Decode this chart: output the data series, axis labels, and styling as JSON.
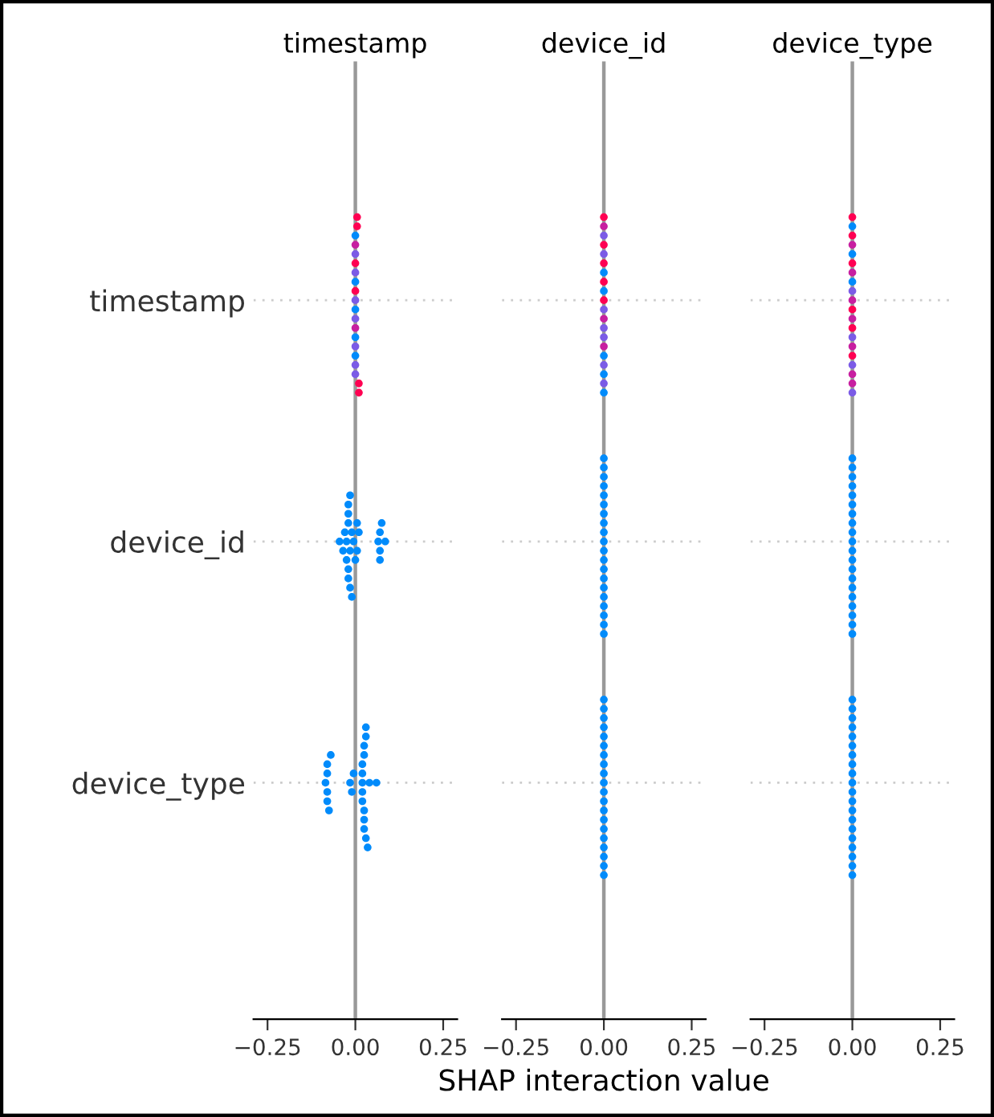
{
  "chart_data": [
    {
      "type": "scatter",
      "orientation": "horizontal",
      "title": "timestamp",
      "categories": [
        "timestamp",
        "device_id",
        "device_type"
      ],
      "xlim": [
        -0.29,
        0.29
      ],
      "xticks": [
        {
          "value": -0.25,
          "label": "−0.25"
        },
        {
          "value": 0,
          "label": "0.00"
        },
        {
          "value": 0.25,
          "label": "0.25"
        }
      ],
      "grid": "y",
      "marker": "circle",
      "legend": false,
      "ref_lines": [
        {
          "axis": "x",
          "value": 0,
          "color": "#999999",
          "line_style": "solid"
        }
      ],
      "series": [
        {
          "x": [
            "timestamp",
            "timestamp",
            "timestamp",
            "timestamp",
            "timestamp",
            "timestamp",
            "timestamp",
            "timestamp",
            "timestamp",
            "timestamp",
            "timestamp",
            "timestamp",
            "timestamp",
            "timestamp",
            "timestamp",
            "timestamp",
            "timestamp",
            "timestamp",
            "timestamp",
            "timestamp"
          ],
          "values": [
            0,
            0,
            0,
            0,
            0,
            0,
            0,
            0,
            0,
            0,
            0,
            0,
            0,
            0,
            0,
            0,
            0.005,
            0.01,
            0.005,
            0.01
          ],
          "colors": [
            "#7b5be6",
            "#008bfb",
            "#ff0052",
            "#7b5be6",
            "#008bfb",
            "#c71fa0",
            "#7b5be6",
            "#008bfb",
            "#ff0052",
            "#7b5be6",
            "#7b5be6",
            "#008bfb",
            "#c71fa0",
            "#7b5be6",
            "#008bfb",
            "#7b5be6",
            "#ff0052",
            "#ff0052",
            "#ff0052",
            "#ff0052"
          ]
        },
        {
          "color": "#008bfb",
          "x": [
            "device_id",
            "device_id",
            "device_id",
            "device_id",
            "device_id",
            "device_id",
            "device_id",
            "device_id",
            "device_id",
            "device_id",
            "device_id",
            "device_id",
            "device_id",
            "device_id",
            "device_id",
            "device_id",
            "device_id",
            "device_id",
            "device_id",
            "device_id",
            "device_id",
            "device_id",
            "device_id",
            "device_id",
            "device_id",
            "device_id"
          ],
          "values": [
            -0.045,
            -0.035,
            -0.03,
            -0.025,
            -0.025,
            -0.02,
            -0.02,
            -0.02,
            -0.02,
            -0.02,
            -0.015,
            -0.015,
            -0.015,
            -0.01,
            -0.01,
            -0.005,
            0,
            0.005,
            0.005,
            0.01,
            0.065,
            0.07,
            0.07,
            0.07,
            0.075,
            0.085
          ]
        },
        {
          "color": "#008bfb",
          "x": [
            "device_type",
            "device_type",
            "device_type",
            "device_type",
            "device_type",
            "device_type",
            "device_type",
            "device_type",
            "device_type",
            "device_type",
            "device_type",
            "device_type",
            "device_type",
            "device_type",
            "device_type",
            "device_type",
            "device_type",
            "device_type",
            "device_type",
            "device_type",
            "device_type",
            "device_type",
            "device_type",
            "device_type",
            "device_type",
            "device_type"
          ],
          "values": [
            -0.085,
            -0.08,
            -0.08,
            -0.08,
            -0.08,
            -0.075,
            -0.07,
            -0.015,
            -0.01,
            -0.005,
            0.02,
            0.02,
            0.02,
            0.02,
            0.02,
            0.025,
            0.025,
            0.025,
            0.025,
            0.025,
            0.03,
            0.03,
            0.03,
            0.035,
            0.04,
            0.06
          ]
        }
      ]
    },
    {
      "type": "scatter",
      "orientation": "horizontal",
      "title": "device_id",
      "xlabel": "SHAP interaction value",
      "categories": [
        "timestamp",
        "device_id",
        "device_type"
      ],
      "tick_labels": "x",
      "xlim": [
        -0.29,
        0.29
      ],
      "xticks": [
        {
          "value": -0.25,
          "label": "−0.25"
        },
        {
          "value": 0,
          "label": "0.00"
        },
        {
          "value": 0.25,
          "label": "0.25"
        }
      ],
      "grid": "y",
      "marker": "circle",
      "legend": false,
      "ref_lines": [
        {
          "axis": "x",
          "value": 0,
          "color": "#999999",
          "line_style": "solid"
        }
      ],
      "series": [
        {
          "x": [
            "timestamp",
            "timestamp",
            "timestamp",
            "timestamp",
            "timestamp",
            "timestamp",
            "timestamp",
            "timestamp",
            "timestamp",
            "timestamp",
            "timestamp",
            "timestamp",
            "timestamp",
            "timestamp",
            "timestamp",
            "timestamp",
            "timestamp",
            "timestamp",
            "timestamp",
            "timestamp"
          ],
          "values": [
            0,
            0,
            0,
            0,
            0,
            0,
            0,
            0,
            0,
            0,
            0,
            0,
            0,
            0,
            0,
            0,
            0,
            0,
            0,
            0
          ],
          "colors": [
            "#ff0052",
            "#7b5be6",
            "#008bfb",
            "#c71fa0",
            "#ff0052",
            "#7b5be6",
            "#008bfb",
            "#7b5be6",
            "#ff0052",
            "#c71fa0",
            "#7b5be6",
            "#008bfb",
            "#ff0052",
            "#7b5be6",
            "#7b5be6",
            "#008bfb",
            "#c71fa0",
            "#7b5be6",
            "#ff0052",
            "#008bfb"
          ]
        },
        {
          "color": "#008bfb",
          "x": [
            "device_id",
            "device_id",
            "device_id",
            "device_id",
            "device_id",
            "device_id",
            "device_id",
            "device_id",
            "device_id",
            "device_id",
            "device_id",
            "device_id",
            "device_id",
            "device_id",
            "device_id",
            "device_id",
            "device_id",
            "device_id",
            "device_id",
            "device_id"
          ],
          "values": [
            0,
            0,
            0,
            0,
            0,
            0,
            0,
            0,
            0,
            0,
            0,
            0,
            0,
            0,
            0,
            0,
            0,
            0,
            0,
            0
          ]
        },
        {
          "color": "#008bfb",
          "x": [
            "device_type",
            "device_type",
            "device_type",
            "device_type",
            "device_type",
            "device_type",
            "device_type",
            "device_type",
            "device_type",
            "device_type",
            "device_type",
            "device_type",
            "device_type",
            "device_type",
            "device_type",
            "device_type",
            "device_type",
            "device_type",
            "device_type",
            "device_type"
          ],
          "values": [
            0,
            0,
            0,
            0,
            0,
            0,
            0,
            0,
            0,
            0,
            0,
            0,
            0,
            0,
            0,
            0,
            0,
            0,
            0,
            0
          ]
        }
      ]
    },
    {
      "type": "scatter",
      "orientation": "horizontal",
      "title": "device_type",
      "categories": [
        "timestamp",
        "device_id",
        "device_type"
      ],
      "tick_labels": "x",
      "xlim": [
        -0.29,
        0.29
      ],
      "xticks": [
        {
          "value": -0.25,
          "label": "−0.25"
        },
        {
          "value": 0,
          "label": "0.00"
        },
        {
          "value": 0.25,
          "label": "0.25"
        }
      ],
      "grid": "y",
      "marker": "circle",
      "legend": false,
      "ref_lines": [
        {
          "axis": "x",
          "value": 0,
          "color": "#999999",
          "line_style": "solid"
        }
      ],
      "series": [
        {
          "x": [
            "timestamp",
            "timestamp",
            "timestamp",
            "timestamp",
            "timestamp",
            "timestamp",
            "timestamp",
            "timestamp",
            "timestamp",
            "timestamp",
            "timestamp",
            "timestamp",
            "timestamp",
            "timestamp",
            "timestamp",
            "timestamp",
            "timestamp",
            "timestamp",
            "timestamp",
            "timestamp"
          ],
          "values": [
            0,
            0,
            0,
            0,
            0,
            0,
            0,
            0,
            0,
            0,
            0,
            0,
            0,
            0,
            0,
            0,
            0,
            0,
            0,
            0
          ],
          "colors": [
            "#c71fa0",
            "#ff0052",
            "#7b5be6",
            "#c71fa0",
            "#008bfb",
            "#ff0052",
            "#c71fa0",
            "#7b5be6",
            "#ff0052",
            "#c71fa0",
            "#008bfb",
            "#ff0052",
            "#c71fa0",
            "#7b5be6",
            "#ff0052",
            "#c71fa0",
            "#008bfb",
            "#c71fa0",
            "#ff0052",
            "#7b5be6"
          ]
        },
        {
          "color": "#008bfb",
          "x": [
            "device_id",
            "device_id",
            "device_id",
            "device_id",
            "device_id",
            "device_id",
            "device_id",
            "device_id",
            "device_id",
            "device_id",
            "device_id",
            "device_id",
            "device_id",
            "device_id",
            "device_id",
            "device_id",
            "device_id",
            "device_id",
            "device_id",
            "device_id"
          ],
          "values": [
            0,
            0,
            0,
            0,
            0,
            0,
            0,
            0,
            0,
            0,
            0,
            0,
            0,
            0,
            0,
            0,
            0,
            0,
            0,
            0
          ]
        },
        {
          "color": "#008bfb",
          "x": [
            "device_type",
            "device_type",
            "device_type",
            "device_type",
            "device_type",
            "device_type",
            "device_type",
            "device_type",
            "device_type",
            "device_type",
            "device_type",
            "device_type",
            "device_type",
            "device_type",
            "device_type",
            "device_type",
            "device_type",
            "device_type",
            "device_type",
            "device_type"
          ],
          "values": [
            0,
            0,
            0,
            0,
            0,
            0,
            0,
            0,
            0,
            0,
            0,
            0,
            0,
            0,
            0,
            0,
            0,
            0,
            0,
            0
          ]
        }
      ]
    }
  ]
}
